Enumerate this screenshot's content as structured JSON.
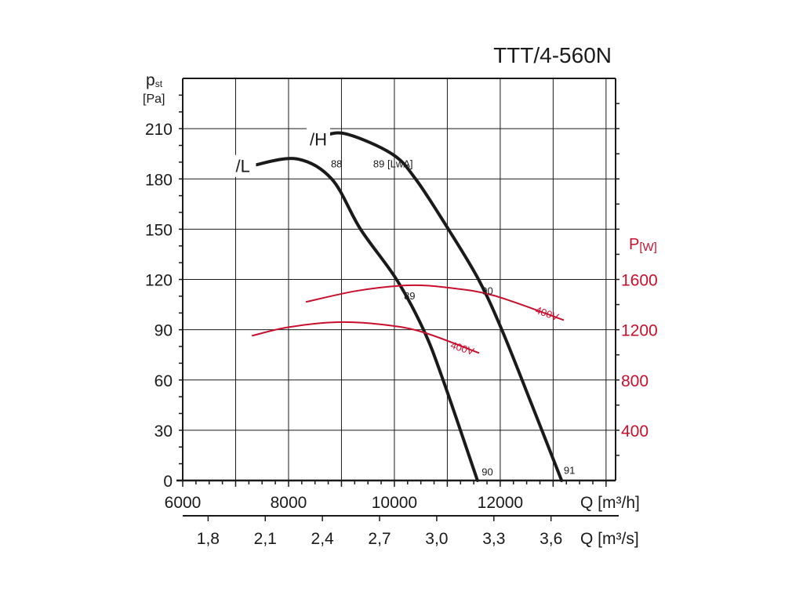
{
  "chart_data": {
    "type": "line",
    "title": "TTT/4-560N",
    "ylabel": "p",
    "ylabel_sub": "st",
    "ylabel_unit": "[Pa]",
    "y2label": "P",
    "y2label_unit": "[W]",
    "xlabel": "Q [m³/h]",
    "x2label": "Q [m³/s]",
    "xlim": [
      6000,
      14180
    ],
    "ylim": [
      0,
      240
    ],
    "y2lim": [
      0,
      3200
    ],
    "grid": true,
    "x_ticks": [
      6000,
      8000,
      10000,
      12000
    ],
    "x_tick_labels": [
      "6000",
      "8000",
      "10000",
      "12000"
    ],
    "x_minor_grid": [
      7000,
      9000,
      11000,
      13000,
      14000
    ],
    "x2_ticks": [
      1.8,
      2.1,
      2.4,
      2.7,
      3.0,
      3.3,
      3.6
    ],
    "x2_tick_labels": [
      "1,8",
      "2,1",
      "2,4",
      "2,7",
      "3,0",
      "3,3",
      "3,6"
    ],
    "y_ticks": [
      0,
      30,
      60,
      90,
      120,
      150,
      180,
      210
    ],
    "y_tick_labels": [
      "0",
      "30",
      "60",
      "90",
      "120",
      "150",
      "180",
      "210"
    ],
    "y2_ticks": [
      400,
      800,
      1200,
      1600
    ],
    "y2_tick_labels": [
      "400",
      "800",
      "1200",
      "1600"
    ],
    "series": [
      {
        "name": "/H",
        "axis": "pressure",
        "color": "#1a1a1a",
        "x": [
          8590,
          9070,
          9950,
          10400,
          11020,
          11590,
          12030,
          12600,
          13160
        ],
        "y": [
          205,
          207,
          195,
          180,
          150,
          120,
          90,
          45,
          0
        ]
      },
      {
        "name": "/L",
        "axis": "pressure",
        "color": "#1a1a1a",
        "x": [
          7320,
          8150,
          8815,
          9360,
          10040,
          10550,
          10920,
          11570
        ],
        "y": [
          188,
          192,
          180,
          150,
          120,
          90,
          60,
          0
        ]
      },
      {
        "name": "400V",
        "axis": "power",
        "color": "#c8102e",
        "x": [
          8340,
          9300,
          10250,
          11000,
          11880,
          13190
        ],
        "y": [
          1422,
          1510,
          1553,
          1535,
          1472,
          1278
        ]
      },
      {
        "name": "400V",
        "axis": "power",
        "color": "#c8102e",
        "x": [
          7320,
          8000,
          8920,
          9800,
          10550,
          11590
        ],
        "y": [
          1153,
          1220,
          1260,
          1240,
          1179,
          1016
        ]
      }
    ],
    "curve_labels": [
      {
        "text": "/H",
        "x": 8400,
        "y": 200
      },
      {
        "text": "/L",
        "x": 7000,
        "y": 184
      }
    ],
    "annotations": [
      {
        "text": "88",
        "x": 8800,
        "y": 187,
        "color": "#1a1a1a"
      },
      {
        "text": "89 [LwA]",
        "x": 9600,
        "y": 187,
        "color": "#1a1a1a"
      },
      {
        "text": "89",
        "x": 10180,
        "y": 108,
        "color": "#1a1a1a"
      },
      {
        "text": "90",
        "x": 11650,
        "y": 111,
        "color": "#1a1a1a"
      },
      {
        "text": "90",
        "x": 11650,
        "y": 3,
        "color": "#1a1a1a"
      },
      {
        "text": "91",
        "x": 13200,
        "y": 4,
        "color": "#1a1a1a"
      }
    ],
    "power_labels": [
      {
        "text": "400V",
        "x": 12650,
        "y": 1335,
        "rot": 20
      },
      {
        "text": "400V",
        "x": 11050,
        "y": 1055,
        "rot": 18
      }
    ]
  }
}
